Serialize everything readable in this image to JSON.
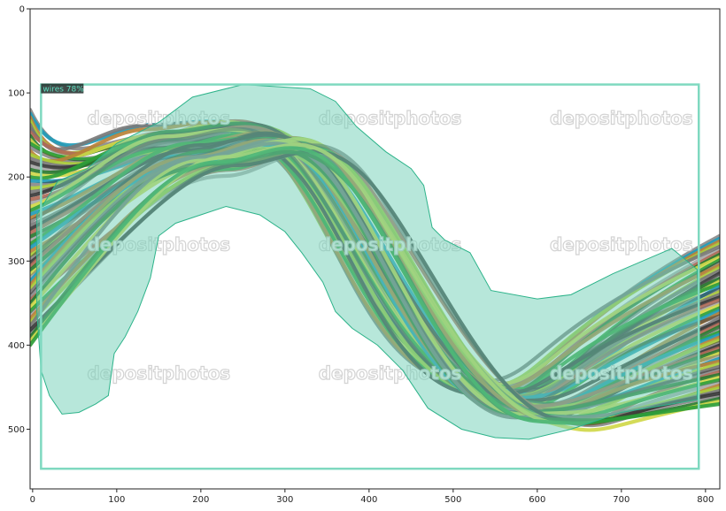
{
  "detection": {
    "label": "wires 78%",
    "class_name": "wires",
    "score_percent": 78,
    "box": {
      "x0": 10,
      "y0": 90,
      "x1": 792,
      "y1": 547
    },
    "box_color": "#7fd9c0",
    "mask_color": "#6fd0b5"
  },
  "axes": {
    "x_range": [
      -3,
      817
    ],
    "y_range": [
      571,
      0
    ],
    "x_ticks": [
      "0",
      "100",
      "200",
      "300",
      "400",
      "500",
      "600",
      "700",
      "800"
    ],
    "y_ticks": [
      "0",
      "100",
      "200",
      "300",
      "400",
      "500"
    ]
  },
  "watermarks": [
    "depositphotos",
    "depositphotos",
    "depositphotos",
    "depositphotos",
    "depositphotos",
    "depositphotos",
    "depositphotos",
    "depositphotos",
    "depositphotos"
  ],
  "colors": {
    "wire_palette": [
      "#2e9e3a",
      "#1f9bb8",
      "#b8823a",
      "#a9cc3a",
      "#7a7a7a",
      "#3a3a3a",
      "#b06a58",
      "#2a7a30",
      "#d0d84a"
    ],
    "axis": "#222222"
  }
}
